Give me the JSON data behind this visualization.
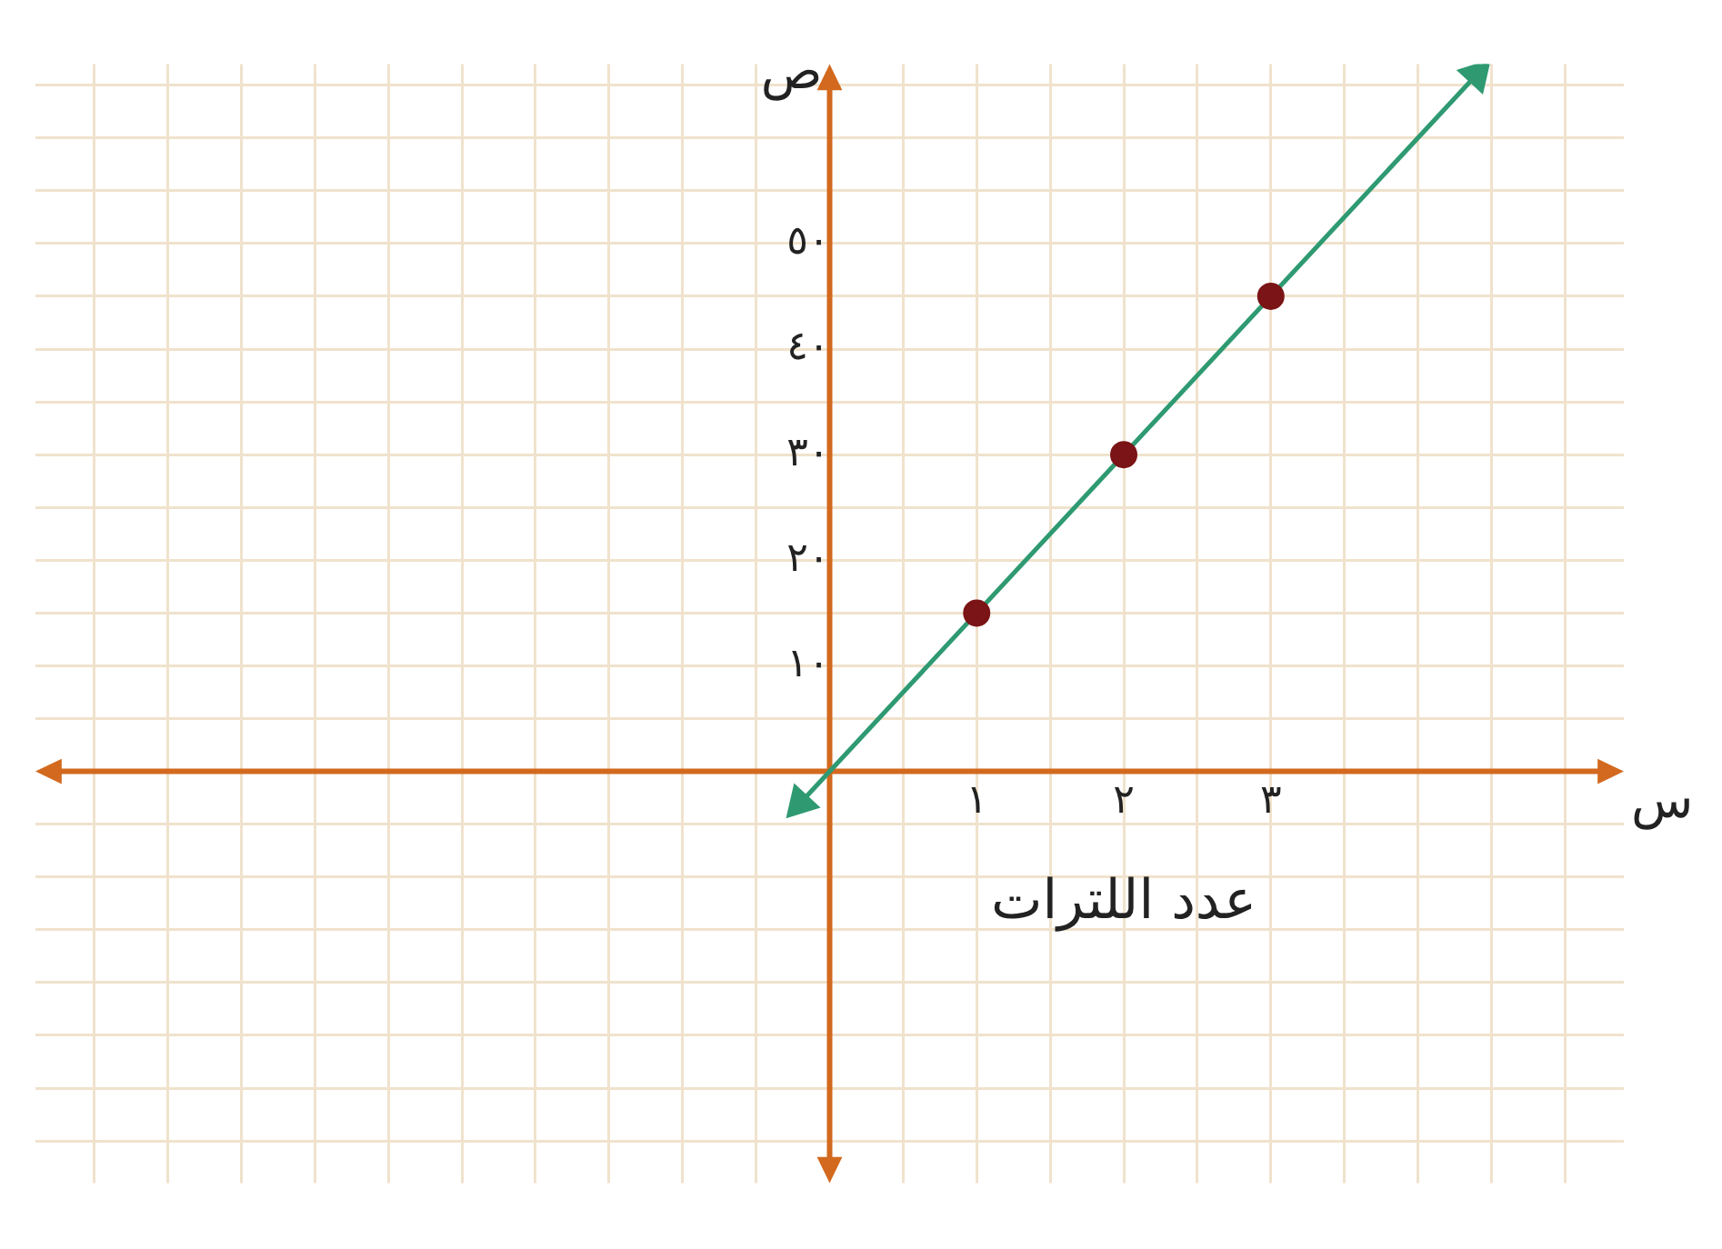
{
  "chart_data": {
    "type": "scatter",
    "xlabel": "عدد اللترات",
    "ylabel": "ص",
    "annotations": [
      "س"
    ],
    "xlim": [
      -5.4,
      5.4
    ],
    "ylim": [
      -39,
      67
    ],
    "grid": true,
    "xticks": [
      {
        "value": -5,
        "label": null
      },
      {
        "value": -4.5,
        "label": null
      },
      {
        "value": -4,
        "label": null
      },
      {
        "value": -3.5,
        "label": null
      },
      {
        "value": -3,
        "label": null
      },
      {
        "value": -2.5,
        "label": null
      },
      {
        "value": -2,
        "label": null
      },
      {
        "value": -1.5,
        "label": null
      },
      {
        "value": -1,
        "label": null
      },
      {
        "value": -0.5,
        "label": null
      },
      {
        "value": 0.5,
        "label": null
      },
      {
        "value": 1,
        "label": "١"
      },
      {
        "value": 1.5,
        "label": null
      },
      {
        "value": 2,
        "label": "٢"
      },
      {
        "value": 2.5,
        "label": null
      },
      {
        "value": 3,
        "label": "٣"
      },
      {
        "value": 3.5,
        "label": null
      },
      {
        "value": 4,
        "label": null
      },
      {
        "value": 4.5,
        "label": null
      },
      {
        "value": 5,
        "label": null
      }
    ],
    "yticks": [
      {
        "value": -35,
        "label": null
      },
      {
        "value": -30,
        "label": null
      },
      {
        "value": -25,
        "label": null
      },
      {
        "value": -20,
        "label": null
      },
      {
        "value": -15,
        "label": null
      },
      {
        "value": -10,
        "label": null
      },
      {
        "value": -5,
        "label": null
      },
      {
        "value": 5,
        "label": null
      },
      {
        "value": 10,
        "label": "١٠"
      },
      {
        "value": 15,
        "label": null
      },
      {
        "value": 20,
        "label": "٢٠"
      },
      {
        "value": 25,
        "label": null
      },
      {
        "value": 30,
        "label": "٣٠"
      },
      {
        "value": 35,
        "label": null
      },
      {
        "value": 40,
        "label": "٤٠"
      },
      {
        "value": 45,
        "label": null
      },
      {
        "value": 50,
        "label": "٥٠"
      },
      {
        "value": 55,
        "label": null
      },
      {
        "value": 60,
        "label": null
      },
      {
        "value": 65,
        "label": null
      }
    ],
    "series": [
      {
        "type": "scatter",
        "color": "#7b1416",
        "marker": "circle",
        "x": [
          1,
          2,
          3
        ],
        "values": [
          15,
          30,
          45
        ]
      },
      {
        "type": "line",
        "color": "#2f9a72",
        "marker": "triangle",
        "x": [
          -0.2,
          4.4
        ],
        "values": [
          -3,
          66
        ]
      }
    ]
  }
}
